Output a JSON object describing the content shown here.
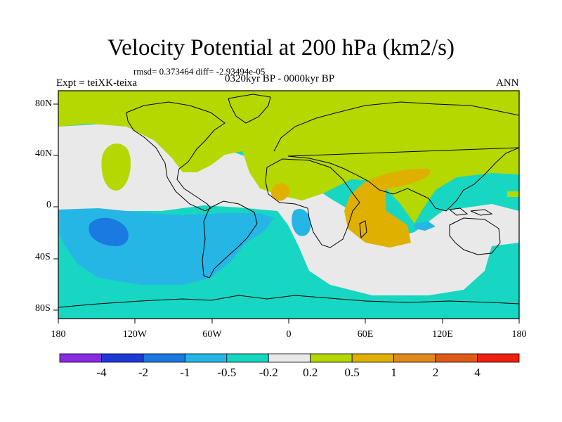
{
  "title": "Velocity Potential at 200 hPa (km2/s)",
  "stats_line": "rmsd= 0.373464 diff= -2.93494e-05",
  "experiment": "Expt = teiXK-teixa",
  "period": "0320kyr BP - 0000kyr BP",
  "season": "ANN",
  "lat_labels": [
    "80N",
    "40N",
    "0",
    "40S",
    "80S"
  ],
  "lon_labels": [
    "180",
    "120W",
    "60W",
    "0",
    "60E",
    "120E",
    "180"
  ],
  "colorbar": {
    "labels": [
      "-4",
      "-2",
      "-1",
      "-0.5",
      "-0.2",
      "0.2",
      "0.5",
      "1",
      "2",
      "4"
    ],
    "colors": [
      "#8a2be2",
      "#1e3ad6",
      "#1a7ae0",
      "#26b6e6",
      "#17d6c2",
      "#e9e9e9",
      "#b4d800",
      "#e0b000",
      "#e08a1e",
      "#e05a18",
      "#f02010"
    ]
  },
  "field_colors": {
    "background_negative_weak": "#17d6c2",
    "near_zero": "#e9e9e9",
    "positive_weak": "#b4d800",
    "positive_mid": "#e0b000",
    "negative_mid": "#26b6e6",
    "negative_strong": "#1a7ae0"
  }
}
